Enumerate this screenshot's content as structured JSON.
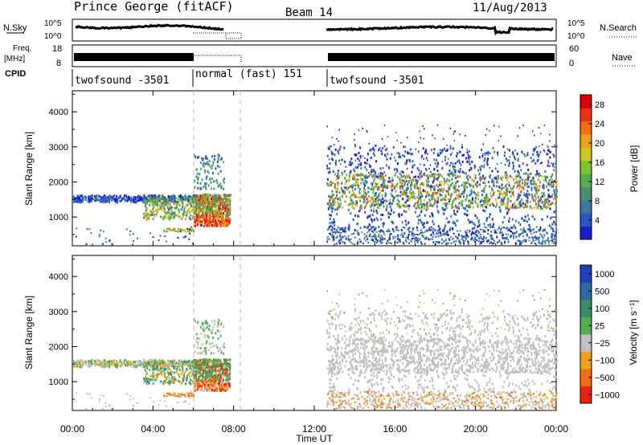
{
  "header": {
    "station": "Prince George (fitACF)",
    "beam": "Beam 14",
    "date": "11/Aug/2013"
  },
  "noise_panel": {
    "left_label": "N.Sky",
    "left_ticks": [
      "10^5",
      "10^0"
    ],
    "right_ticks": [
      "10^5",
      "10^0"
    ],
    "right_label": "N.Search"
  },
  "freq_panel": {
    "left_label_1": "Freq.",
    "left_label_2": "[MHz]",
    "left_ticks": [
      "18",
      "8"
    ],
    "right_ticks": [
      "60",
      "0"
    ],
    "right_label": "Nave"
  },
  "cpid": {
    "label": "CPID",
    "segments": [
      {
        "name": "twofsound -3501",
        "start_hour": 0.0
      },
      {
        "name": "normal (fast) 151",
        "start_hour": 6.0
      },
      {
        "name": "twofsound -3501",
        "start_hour": 12.6
      }
    ]
  },
  "colors": {
    "power_scale": [
      "#1c1ccf",
      "#2a55c4",
      "#3a7a9a",
      "#4a9070",
      "#4fb04f",
      "#7ac030",
      "#c8c820",
      "#f0a020",
      "#f07010",
      "#ee3010",
      "#dd0000"
    ],
    "velocity_scale": [
      "#2040b8",
      "#2a6aa0",
      "#3a8c6a",
      "#4fb04f",
      "#c0c0c0",
      "#f0a020",
      "#f07010",
      "#ee2010"
    ]
  },
  "chart_data": [
    {
      "type": "heatmap",
      "name": "power",
      "ylabel": "Slant Range [km]",
      "xlabel": "Time UT",
      "xlim_hours": [
        0,
        24
      ],
      "ylim": [
        180,
        4600
      ],
      "yticks": [
        1000,
        2000,
        3000,
        4000
      ],
      "colorbar_label": "Power [dB]",
      "colorbar_ticks": [
        "4",
        "8",
        "12",
        "16",
        "20",
        "24",
        "28"
      ],
      "colorbar_range": [
        0,
        30
      ]
    },
    {
      "type": "heatmap",
      "name": "velocity",
      "ylabel": "Slant Range [km]",
      "xlabel": "Time UT",
      "xlim_hours": [
        0,
        24
      ],
      "ylim": [
        180,
        4600
      ],
      "yticks": [
        1000,
        2000,
        3000,
        4000
      ],
      "colorbar_label": "Velocity [m s⁻¹]",
      "colorbar_ticks": [
        "1000",
        "500",
        "100",
        "25",
        "−25",
        "−100",
        "−500",
        "−1000"
      ]
    }
  ],
  "xaxis": {
    "ticks": [
      "00:00",
      "04:00",
      "08:00",
      "12:00",
      "16:00",
      "20:00",
      "00:00"
    ],
    "label": "Time UT"
  }
}
